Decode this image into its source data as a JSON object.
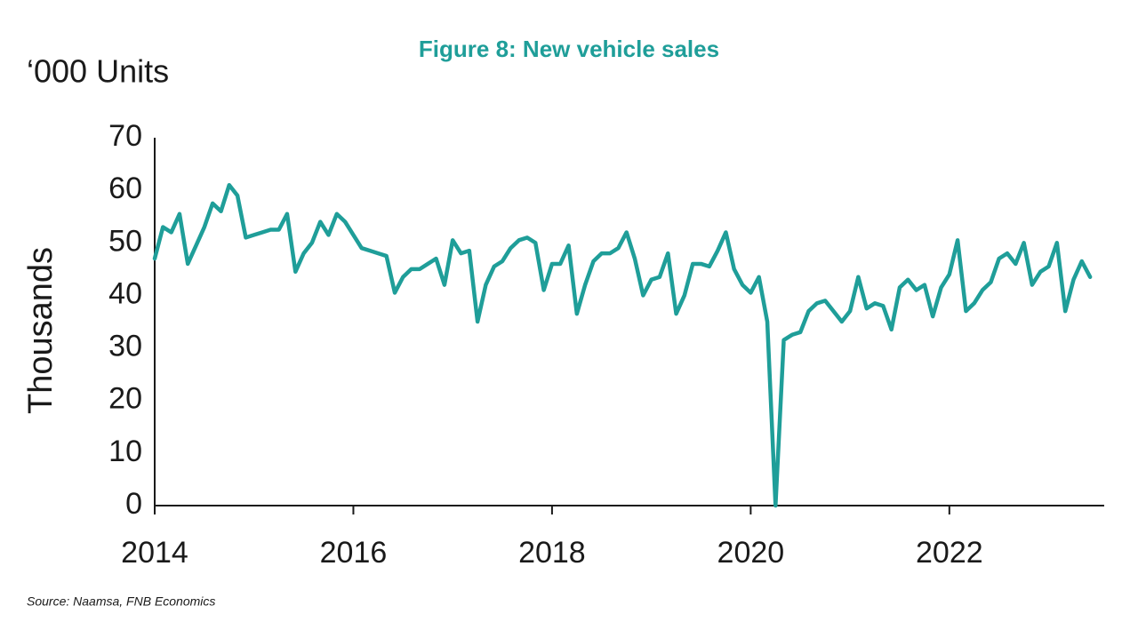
{
  "chart_data": {
    "type": "line",
    "title": "Figure 8: New vehicle sales",
    "unit_label": "‘000 Units",
    "y_axis_label": "Thousands",
    "source": "Source: Naamsa, FNB Economics",
    "x": [
      2014,
      2014.083,
      2014.167,
      2014.25,
      2014.333,
      2014.417,
      2014.5,
      2014.583,
      2014.667,
      2014.75,
      2014.833,
      2014.917,
      2015,
      2015.083,
      2015.167,
      2015.25,
      2015.333,
      2015.417,
      2015.5,
      2015.583,
      2015.667,
      2015.75,
      2015.833,
      2015.917,
      2016,
      2016.083,
      2016.167,
      2016.25,
      2016.333,
      2016.417,
      2016.5,
      2016.583,
      2016.667,
      2016.75,
      2016.833,
      2016.917,
      2017,
      2017.083,
      2017.167,
      2017.25,
      2017.333,
      2017.417,
      2017.5,
      2017.583,
      2017.667,
      2017.75,
      2017.833,
      2017.917,
      2018,
      2018.083,
      2018.167,
      2018.25,
      2018.333,
      2018.417,
      2018.5,
      2018.583,
      2018.667,
      2018.75,
      2018.833,
      2018.917,
      2019,
      2019.083,
      2019.167,
      2019.25,
      2019.333,
      2019.417,
      2019.5,
      2019.583,
      2019.667,
      2019.75,
      2019.833,
      2019.917,
      2020,
      2020.083,
      2020.167,
      2020.25,
      2020.333,
      2020.417,
      2020.5,
      2020.583,
      2020.667,
      2020.75,
      2020.833,
      2020.917,
      2021,
      2021.083,
      2021.167,
      2021.25,
      2021.333,
      2021.417,
      2021.5,
      2021.583,
      2021.667,
      2021.75,
      2021.833,
      2021.917,
      2022,
      2022.083,
      2022.167,
      2022.25,
      2022.333,
      2022.417,
      2022.5,
      2022.583,
      2022.667,
      2022.75,
      2022.833,
      2022.917,
      2023,
      2023.083,
      2023.167,
      2023.25,
      2023.333,
      2023.417
    ],
    "series": [
      {
        "name": "New vehicle sales",
        "color": "#1f9e99",
        "values": [
          47,
          53,
          52,
          55.5,
          46,
          49.5,
          53,
          57.5,
          56,
          61,
          59,
          51,
          51.5,
          52,
          52.5,
          52.5,
          55.5,
          44.5,
          48,
          50,
          54,
          51.5,
          55.5,
          54,
          51.5,
          49,
          48.5,
          48,
          47.5,
          40.5,
          43.5,
          45,
          45,
          46,
          47,
          42,
          50.5,
          48,
          48.5,
          35,
          42,
          45.5,
          46.5,
          49,
          50.5,
          51,
          50,
          41,
          46,
          46,
          49.5,
          36.5,
          42,
          46.5,
          48,
          48,
          49,
          52,
          47,
          40,
          43,
          43.5,
          48,
          36.5,
          40,
          46,
          46,
          45.5,
          48.5,
          52,
          45,
          42,
          40.5,
          43.5,
          35,
          0,
          31.5,
          32.5,
          33,
          37,
          38.5,
          39,
          37,
          35,
          37,
          43.5,
          37.5,
          38.5,
          38,
          33.5,
          41.5,
          43,
          41,
          42,
          36,
          41.5,
          44,
          50.5,
          37,
          38.5,
          41,
          42.5,
          47,
          48,
          46,
          50,
          42,
          44.5,
          45.5,
          50,
          37,
          43,
          46.5,
          43.5
        ]
      }
    ],
    "xlim": [
      2014,
      2023.55
    ],
    "xticks": [
      2014,
      2016,
      2018,
      2020,
      2022
    ],
    "ylim": [
      0,
      70
    ],
    "yticks": [
      0,
      10,
      20,
      30,
      40,
      50,
      60,
      70
    ]
  }
}
